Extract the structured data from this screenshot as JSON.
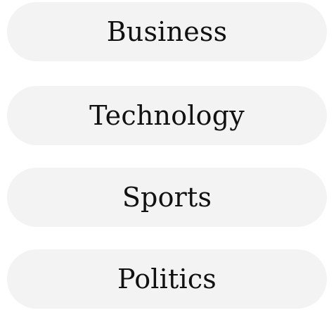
{
  "categories": [
    {
      "label": "Business"
    },
    {
      "label": "Technology"
    },
    {
      "label": "Sports"
    },
    {
      "label": "Politics"
    }
  ],
  "colors": {
    "pill_background": "#f3f3f3",
    "text": "#111111",
    "page_background": "#ffffff"
  }
}
